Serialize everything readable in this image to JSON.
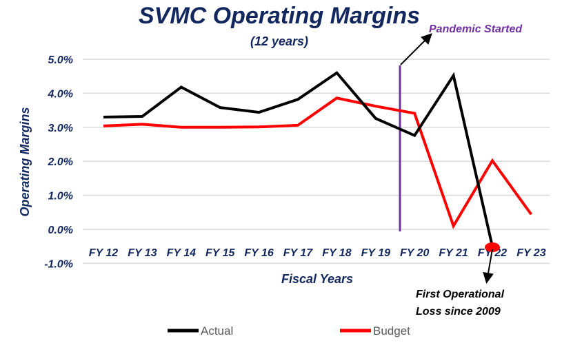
{
  "chart_data": {
    "type": "line",
    "title": "SVMC Operating Margins",
    "subtitle": "(12 years)",
    "xlabel": "Fiscal Years",
    "ylabel": "Operating Margins",
    "categories": [
      "FY 12",
      "FY 13",
      "FY 14",
      "FY 15",
      "FY 16",
      "FY 17",
      "FY 18",
      "FY 19",
      "FY 20",
      "FY 21",
      "FY 22",
      "FY 23"
    ],
    "yticks": [
      "5.0%",
      "4.0%",
      "3.0%",
      "2.0%",
      "1.0%",
      "0.0%",
      "-1.0%"
    ],
    "ylim": [
      -1,
      5
    ],
    "grid": true,
    "legend_position": "bottom",
    "series": [
      {
        "name": "Actual",
        "color": "#000000",
        "values": [
          3.3,
          3.32,
          4.18,
          3.58,
          3.44,
          3.82,
          4.6,
          3.26,
          2.76,
          4.52,
          -0.5,
          null
        ]
      },
      {
        "name": "Budget",
        "color": "#ff0000",
        "values": [
          3.04,
          3.09,
          3.0,
          3.0,
          3.01,
          3.06,
          3.86,
          3.62,
          3.41,
          0.1,
          2.02,
          0.44
        ]
      }
    ],
    "annotations": [
      {
        "text": "Pandemic Started",
        "color": "#7030a0",
        "marker": "vertical line between FY 19 and FY 20"
      },
      {
        "text": "First Operational Loss since 2009",
        "color": "#000000",
        "marker": "red dot at FY 22 Actual"
      }
    ]
  }
}
